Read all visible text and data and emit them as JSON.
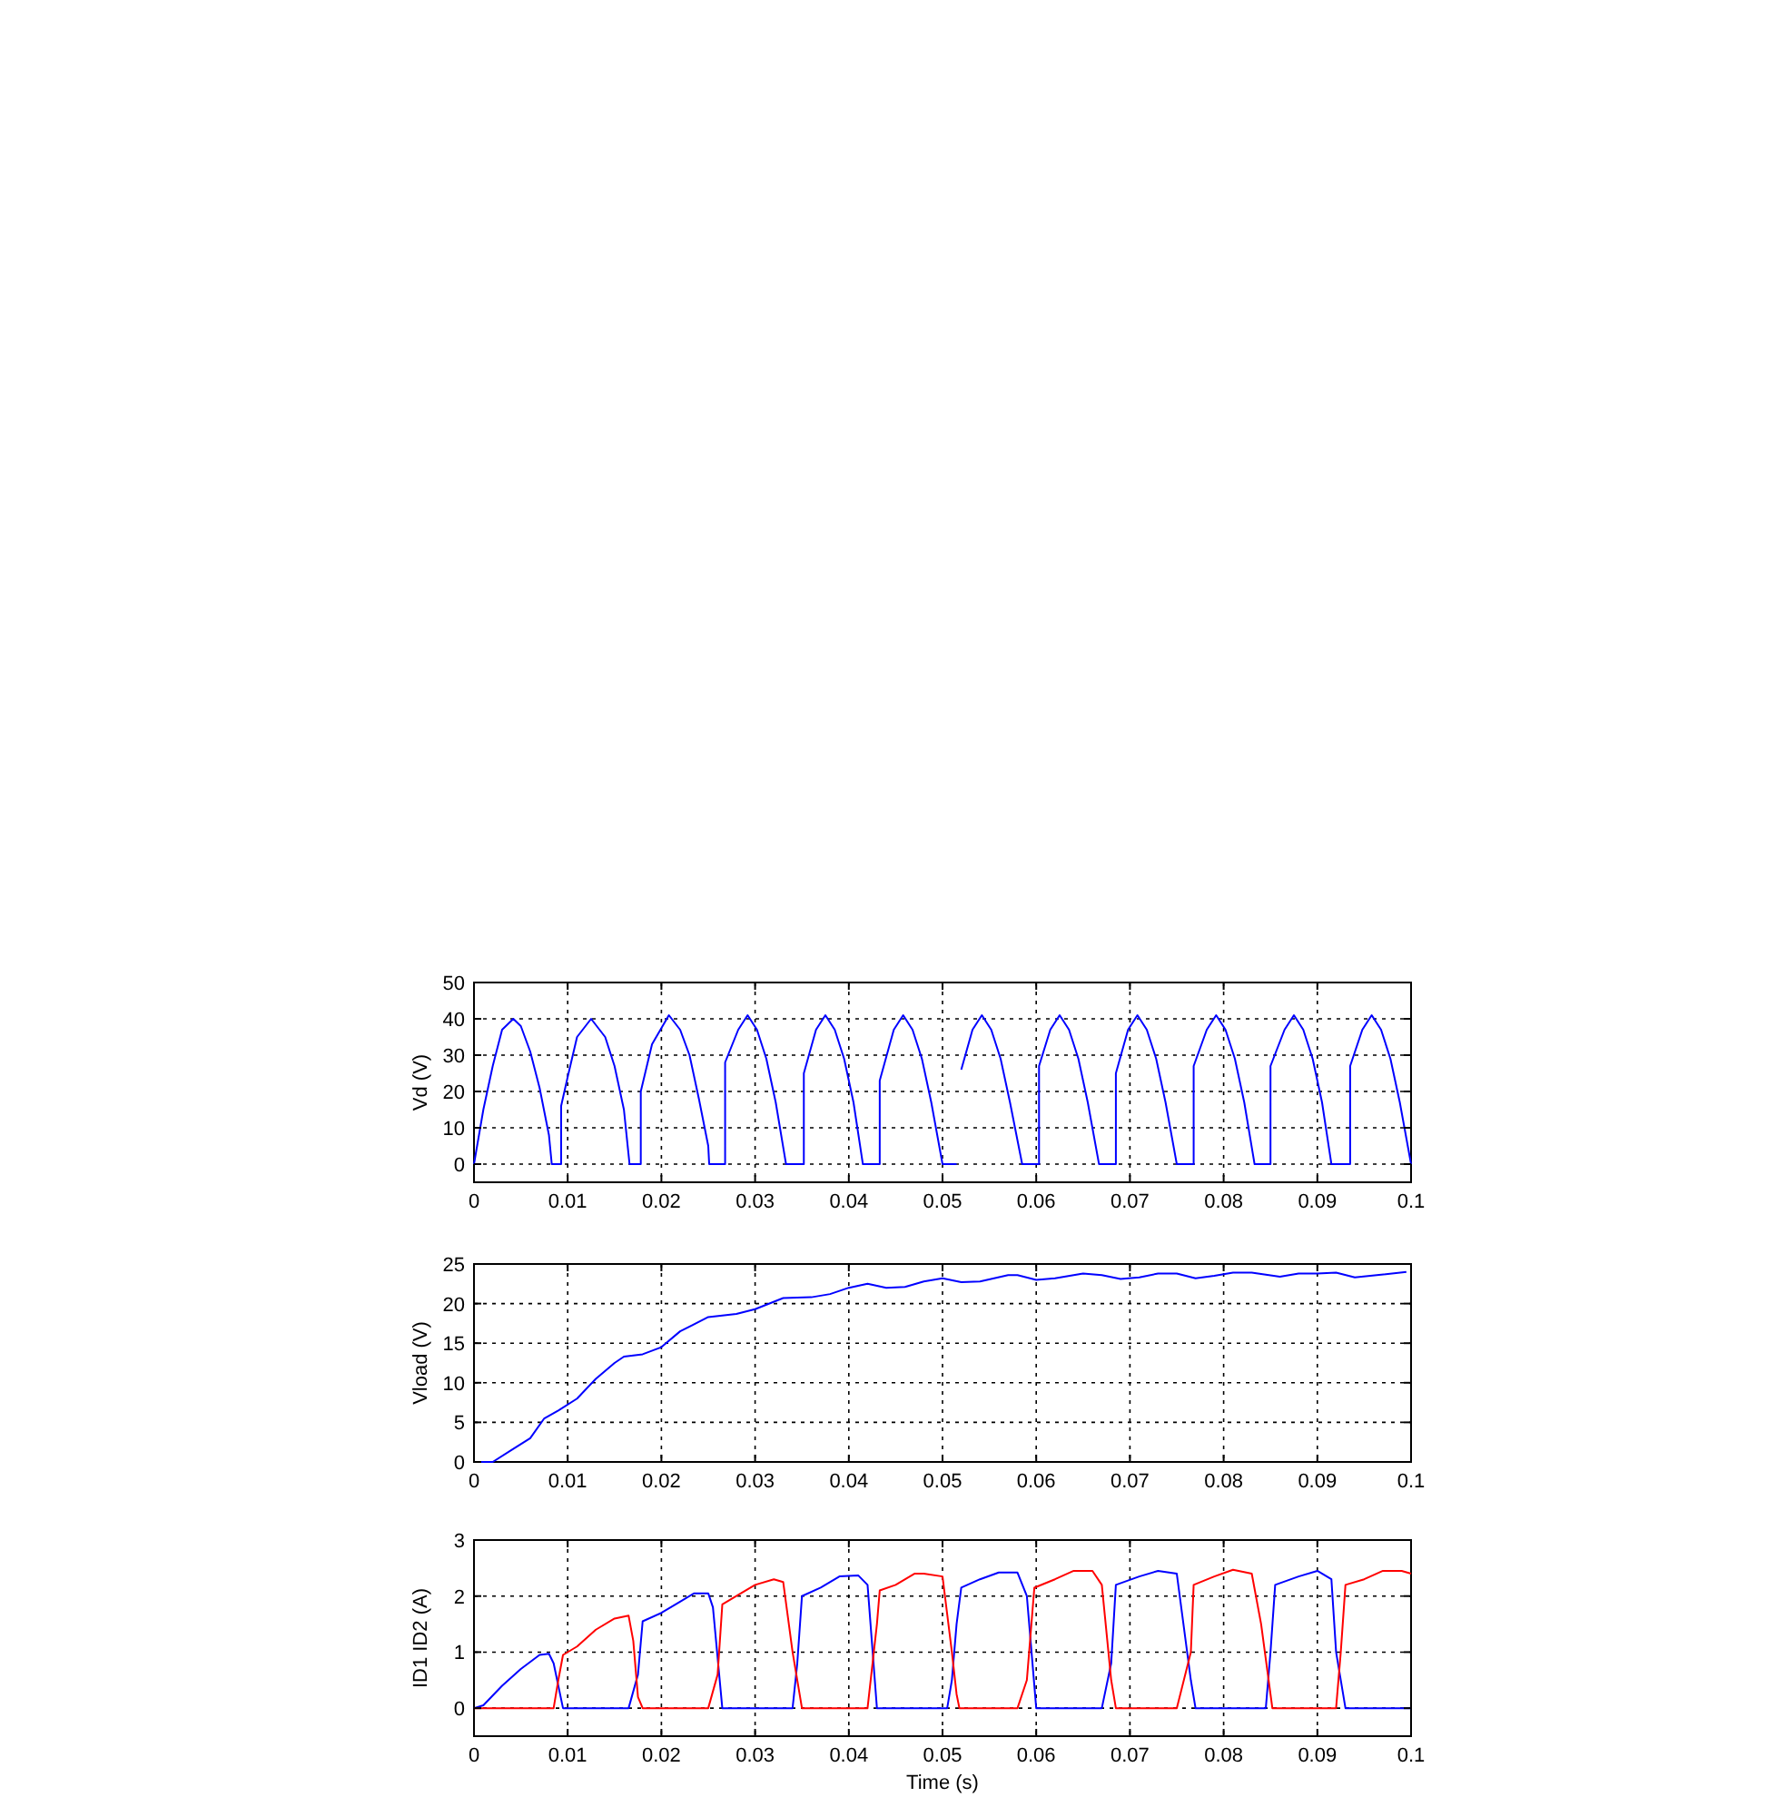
{
  "chart_data": [
    {
      "type": "line",
      "ylabel": "Vd (V)",
      "xlim": [
        0,
        0.1
      ],
      "ylim": [
        -5,
        50
      ],
      "xticks": [
        0,
        0.01,
        0.02,
        0.03,
        0.04,
        0.05,
        0.06,
        0.07,
        0.08,
        0.09,
        0.1
      ],
      "yticks": [
        0,
        10,
        20,
        30,
        40,
        50
      ],
      "grid": true,
      "series": [
        {
          "color": "#0000ff",
          "x": [
            0,
            0.001,
            0.002,
            0.003,
            0.0042,
            0.005,
            0.006,
            0.007,
            0.008,
            0.0083,
            0.0093,
            0.0093,
            0.01,
            0.011,
            0.0125,
            0.014,
            0.015,
            0.016,
            0.0166,
            0.0178,
            0.0178,
            0.019,
            0.0208,
            0.022,
            0.023,
            0.024,
            0.025,
            0.0251,
            0.0268,
            0.0268,
            0.0282,
            0.0292,
            0.0302,
            0.0312,
            0.0322,
            0.0333,
            0.0352,
            0.0352,
            0.0365,
            0.0375,
            0.0385,
            0.0395,
            0.0405,
            0.0415,
            0.0433,
            0.0433,
            0.0448,
            0.0458,
            0.0468,
            0.0478,
            0.0488,
            0.05,
            0.0515,
            0.0516,
            0.052,
            0.0532,
            0.0542,
            0.0552,
            0.0562,
            0.0572,
            0.0585,
            0.0603,
            0.0603,
            0.0615,
            0.0625,
            0.0635,
            0.0645,
            0.0655,
            0.0667,
            0.0685,
            0.0685,
            0.0698,
            0.0708,
            0.0718,
            0.0728,
            0.0738,
            0.075,
            0.0768,
            0.0768,
            0.0782,
            0.0792,
            0.0802,
            0.0812,
            0.0822,
            0.0833,
            0.085,
            0.085,
            0.0865,
            0.0875,
            0.0885,
            0.0895,
            0.0905,
            0.0915,
            0.0935,
            0.0935,
            0.0948,
            0.0958,
            0.0968,
            0.0978,
            0.0988,
            0.1
          ],
          "values": [
            0,
            15,
            27,
            37,
            40,
            38,
            31,
            21,
            8,
            0,
            0,
            16,
            24,
            35,
            40,
            35,
            27,
            15,
            0,
            0,
            20,
            33,
            41,
            37,
            30,
            18,
            5,
            0,
            0,
            28,
            37,
            41,
            37,
            29,
            17,
            0,
            0,
            25,
            37,
            41,
            37,
            29,
            17,
            0,
            0,
            23,
            37,
            41,
            37,
            29,
            17,
            0,
            0,
            null,
            26,
            37,
            41,
            37,
            29,
            17,
            0,
            0,
            27,
            37,
            41,
            37,
            29,
            17,
            0,
            0,
            25,
            37,
            41,
            37,
            29,
            17,
            0,
            0,
            27,
            37,
            41,
            37,
            29,
            17,
            0,
            0,
            27,
            37,
            41,
            37,
            29,
            17,
            0,
            0,
            27,
            37,
            41,
            37,
            29,
            17,
            0
          ]
        }
      ]
    },
    {
      "type": "line",
      "ylabel": "Vload (V)",
      "xlim": [
        0,
        0.1
      ],
      "ylim": [
        0,
        25
      ],
      "xticks": [
        0,
        0.01,
        0.02,
        0.03,
        0.04,
        0.05,
        0.06,
        0.07,
        0.08,
        0.09,
        0.1
      ],
      "yticks": [
        0,
        5,
        10,
        15,
        20,
        25
      ],
      "grid": true,
      "series": [
        {
          "color": "#0000ff",
          "x": [
            0,
            0.002,
            0.004,
            0.006,
            0.0075,
            0.009,
            0.011,
            0.013,
            0.015,
            0.016,
            0.018,
            0.02,
            0.022,
            0.025,
            0.028,
            0.03,
            0.033,
            0.036,
            0.038,
            0.04,
            0.042,
            0.044,
            0.046,
            0.048,
            0.05,
            0.052,
            0.054,
            0.057,
            0.058,
            0.06,
            0.062,
            0.065,
            0.067,
            0.069,
            0.071,
            0.073,
            0.075,
            0.077,
            0.079,
            0.081,
            0.083,
            0.086,
            0.088,
            0.09,
            0.092,
            0.094,
            0.0995
          ],
          "values": [
            0,
            0,
            1.5,
            3,
            5.5,
            6.5,
            8,
            10.5,
            12.5,
            13.3,
            13.6,
            14.5,
            16.5,
            18.3,
            18.7,
            19.3,
            20.7,
            20.8,
            21.2,
            22,
            22.5,
            22,
            22.1,
            22.8,
            23.2,
            22.7,
            22.8,
            23.6,
            23.6,
            23,
            23.2,
            23.8,
            23.6,
            23.1,
            23.3,
            23.8,
            23.8,
            23.2,
            23.5,
            23.9,
            23.9,
            23.4,
            23.8,
            23.8,
            23.9,
            23.3,
            24
          ]
        }
      ]
    },
    {
      "type": "line",
      "xlabel": "Time (s)",
      "ylabel": "ID1 ID2 (A)",
      "xlim": [
        0,
        0.1
      ],
      "ylim": [
        -0.5,
        3
      ],
      "xticks": [
        0,
        0.01,
        0.02,
        0.03,
        0.04,
        0.05,
        0.06,
        0.07,
        0.08,
        0.09,
        0.1
      ],
      "yticks": [
        0,
        1,
        2,
        3
      ],
      "grid": true,
      "series": [
        {
          "color": "#0000ff",
          "x": [
            0,
            0.001,
            0.003,
            0.005,
            0.007,
            0.008,
            0.0085,
            0.0095,
            0.0165,
            0.0175,
            0.018,
            0.02,
            0.022,
            0.0235,
            0.025,
            0.0255,
            0.0265,
            0.034,
            0.0345,
            0.035,
            0.037,
            0.039,
            0.041,
            0.042,
            0.043,
            0.0505,
            0.051,
            0.0515,
            0.052,
            0.054,
            0.056,
            0.058,
            0.059,
            0.06,
            0.067,
            0.068,
            0.0685,
            0.071,
            0.073,
            0.075,
            0.0765,
            0.077,
            0.0845,
            0.085,
            0.0855,
            0.088,
            0.09,
            0.0915,
            0.092,
            0.093,
            0.1
          ],
          "values": [
            0,
            0.05,
            0.4,
            0.7,
            0.95,
            0.97,
            0.8,
            0,
            0,
            0.6,
            1.55,
            1.7,
            1.9,
            2.05,
            2.05,
            1.8,
            0,
            0,
            0.8,
            2,
            2.15,
            2.35,
            2.37,
            2.2,
            0,
            0,
            0.5,
            1.5,
            2.15,
            2.3,
            2.42,
            2.42,
            2,
            0,
            0,
            0.8,
            2.2,
            2.35,
            2.45,
            2.4,
            0.5,
            0,
            0,
            1,
            2.2,
            2.35,
            2.45,
            2.3,
            1,
            0,
            0
          ]
        },
        {
          "color": "#ff0000",
          "x": [
            0,
            0.0085,
            0.009,
            0.0095,
            0.011,
            0.013,
            0.015,
            0.0165,
            0.017,
            0.0175,
            0.018,
            0.025,
            0.026,
            0.0265,
            0.028,
            0.03,
            0.032,
            0.033,
            0.034,
            0.035,
            0.042,
            0.043,
            0.0433,
            0.045,
            0.047,
            0.048,
            0.05,
            0.051,
            0.0515,
            0.0518,
            0.058,
            0.059,
            0.0598,
            0.062,
            0.064,
            0.066,
            0.067,
            0.068,
            0.0685,
            0.075,
            0.0765,
            0.0768,
            0.079,
            0.081,
            0.083,
            0.084,
            0.0852,
            0.092,
            0.0925,
            0.093,
            0.095,
            0.097,
            0.099,
            0.1
          ],
          "values": [
            0,
            0,
            0.5,
            0.95,
            1.1,
            1.4,
            1.6,
            1.65,
            1.2,
            0.2,
            0,
            0,
            0.6,
            1.85,
            2,
            2.2,
            2.3,
            2.25,
            1,
            0,
            0,
            1.5,
            2.1,
            2.2,
            2.4,
            2.4,
            2.35,
            1,
            0.25,
            0,
            0,
            0.5,
            2.15,
            2.3,
            2.45,
            2.45,
            2.2,
            0.5,
            0,
            0,
            1,
            2.2,
            2.35,
            2.47,
            2.4,
            1.5,
            0,
            0,
            1,
            2.2,
            2.3,
            2.45,
            2.45,
            2.4
          ]
        }
      ]
    }
  ]
}
